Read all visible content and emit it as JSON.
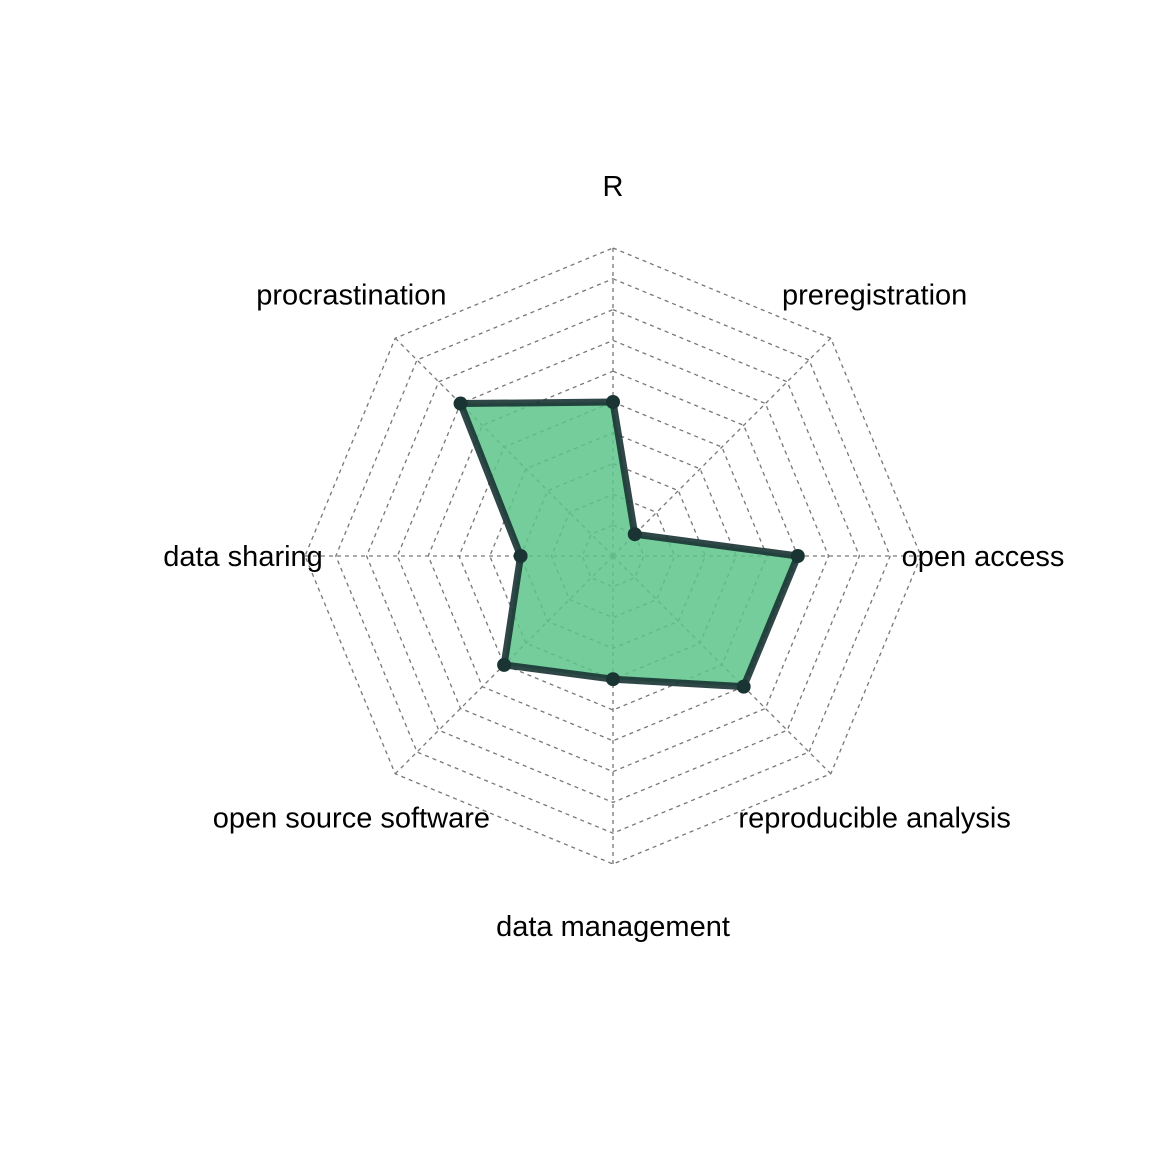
{
  "chart_data": {
    "type": "radar",
    "title": "",
    "axes": [
      "R",
      "preregistration",
      "open access",
      "reproducible analysis",
      "data management",
      "open source software",
      "data sharing",
      "procrastination"
    ],
    "values": [
      0.5,
      0.1,
      0.6,
      0.6,
      0.4,
      0.5,
      0.3,
      0.7
    ],
    "range": [
      0,
      1
    ],
    "grid_levels": 10,
    "grid": true,
    "colors": {
      "fill": "#5cc48a",
      "line": "#1a3333",
      "grid": "#777777"
    }
  }
}
